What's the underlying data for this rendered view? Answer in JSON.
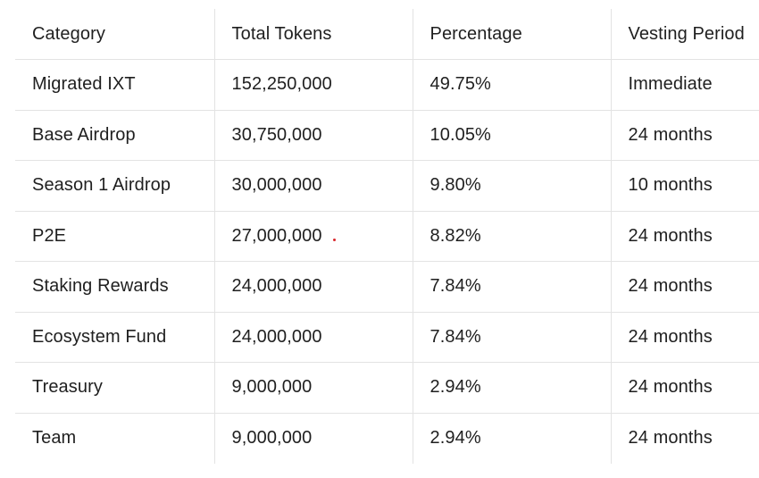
{
  "table": {
    "headers": [
      "Category",
      "Total Tokens",
      "Percentage",
      "Vesting Period"
    ],
    "rows": [
      [
        "Migrated IXT",
        "152,250,000",
        "49.75%",
        "Immediate"
      ],
      [
        "Base Airdrop",
        "30,750,000",
        "10.05%",
        "24 months"
      ],
      [
        "Season 1 Airdrop",
        "30,000,000",
        "9.80%",
        "10 months"
      ],
      [
        "P2E",
        "27,000,000",
        "8.82%",
        "24 months"
      ],
      [
        "Staking Rewards",
        "24,000,000",
        "7.84%",
        "24 months"
      ],
      [
        "Ecosystem Fund",
        "24,000,000",
        "7.84%",
        "24 months"
      ],
      [
        "Treasury",
        "9,000,000",
        "2.94%",
        "24 months"
      ],
      [
        "Team",
        "9,000,000",
        "2.94%",
        "24 months"
      ]
    ]
  },
  "colors": {
    "text": "#1f1f1f",
    "grid": "#e3e3e3",
    "marker": "#d9262b"
  }
}
